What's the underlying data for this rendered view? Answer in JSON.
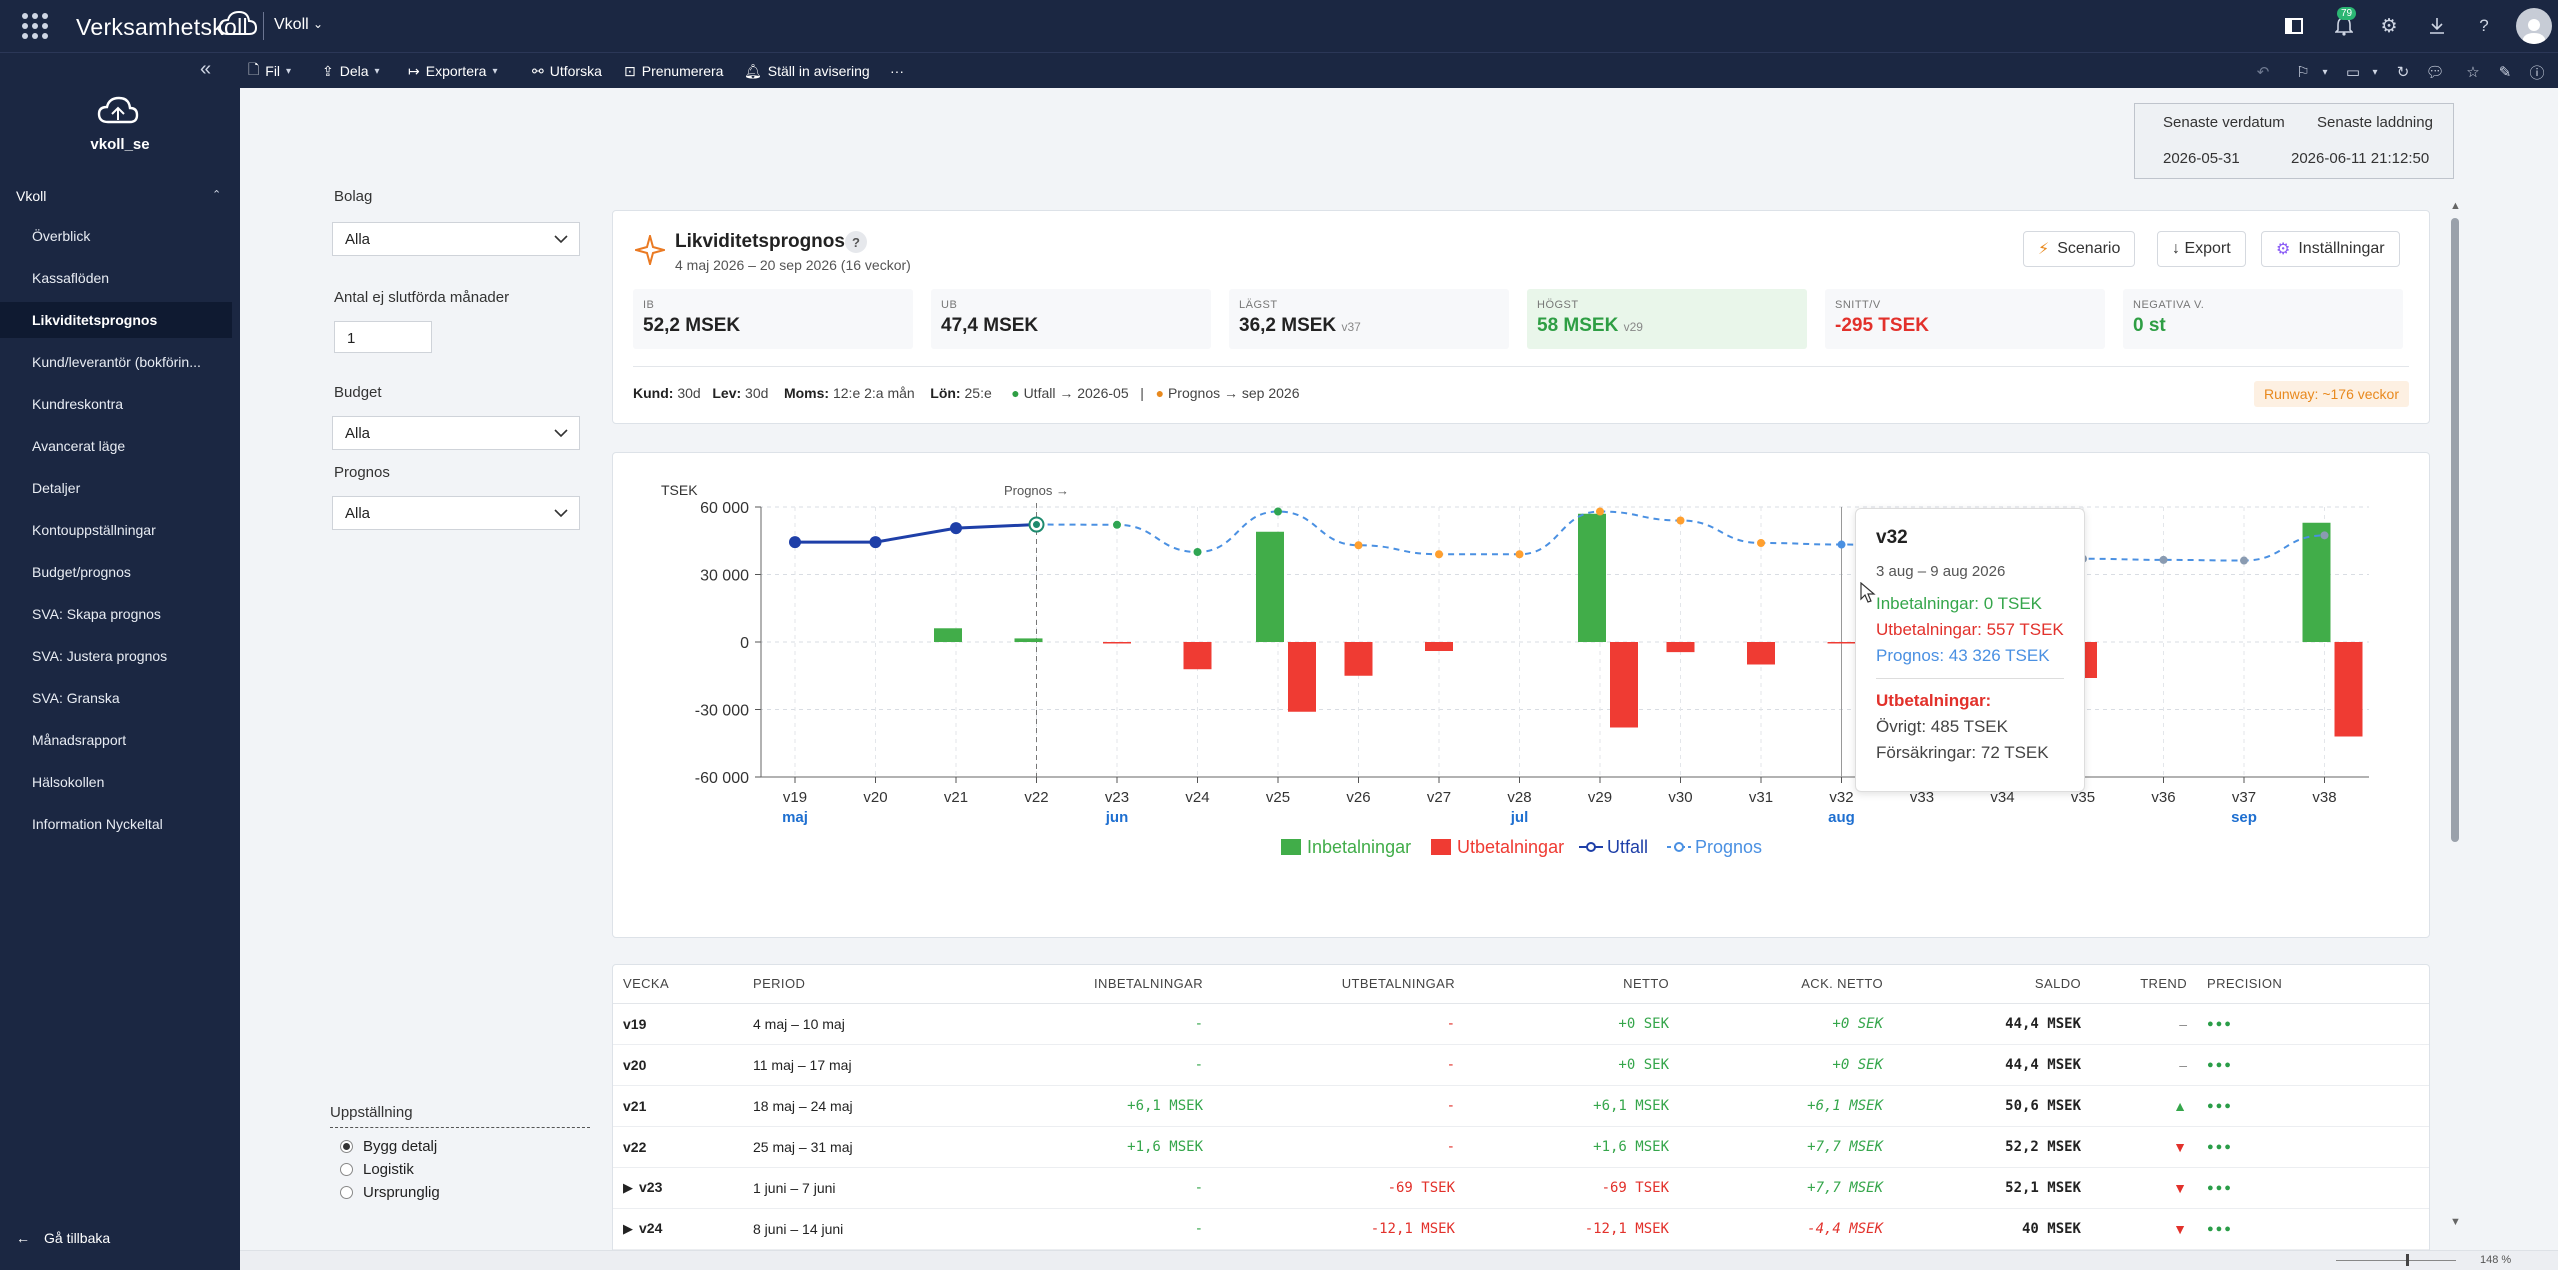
{
  "app": {
    "brand": "Verksamhetskoll",
    "workspace": "Vkoll",
    "notif_count": "79"
  },
  "toolbar": {
    "file": "Fil",
    "share": "Dela",
    "export": "Exportera",
    "explore": "Utforska",
    "subscribe": "Prenumerera",
    "alert": "Ställ in avisering",
    "more": "···"
  },
  "sidebar": {
    "org": "vkoll_se",
    "group": "Vkoll",
    "items": [
      {
        "label": "Överblick"
      },
      {
        "label": "Kassaflöden"
      },
      {
        "label": "Likviditetsprognos"
      },
      {
        "label": "Kund/leverantör (bokförin..."
      },
      {
        "label": "Kundreskontra"
      },
      {
        "label": "Avancerat läge"
      },
      {
        "label": "Detaljer"
      },
      {
        "label": "Kontouppställningar"
      },
      {
        "label": "Budget/prognos"
      },
      {
        "label": "SVA: Skapa prognos"
      },
      {
        "label": "SVA: Justera prognos"
      },
      {
        "label": "SVA: Granska"
      },
      {
        "label": "Månadsrapport"
      },
      {
        "label": "Hälsokollen"
      },
      {
        "label": "Information Nyckeltal"
      }
    ],
    "back": "Gå tillbaka"
  },
  "datebox": {
    "h1": "Senaste verdatum",
    "h2": "Senaste laddning",
    "v1": "2026-05-31",
    "v2": "2026-06-11 21:12:50"
  },
  "filters": {
    "bolag_label": "Bolag",
    "bolag_value": "Alla",
    "months_label": "Antal ej slutförda månader",
    "months_value": "1",
    "budget_label": "Budget",
    "budget_value": "Alla",
    "prognos_label": "Prognos",
    "prognos_value": "Alla"
  },
  "layout_options": {
    "title": "Uppställning",
    "opt1": "Bygg detalj",
    "opt2": "Logistik",
    "opt3": "Ursprunglig"
  },
  "summary": {
    "title": "Likviditetsprognos",
    "help": "?",
    "subtitle": "4 maj 2026 – 20 sep 2026 (16 veckor)",
    "btn_scenario": "Scenario",
    "btn_export": "↓ Export",
    "btn_settings": "Inställningar",
    "kpis": {
      "ib_label": "IB",
      "ib_value": "52,2 MSEK",
      "ub_label": "UB",
      "ub_value": "47,4 MSEK",
      "low_label": "LÄGST",
      "low_value": "36,2 MSEK",
      "low_week": "v37",
      "high_label": "HÖGST",
      "high_value": "58 MSEK",
      "high_week": "v29",
      "avg_label": "SNITT/V",
      "avg_value": "-295 TSEK",
      "neg_label": "NEGATIVA V.",
      "neg_value": "0 st"
    },
    "assump": {
      "kund_l": "Kund:",
      "kund_v": "30d",
      "lev_l": "Lev:",
      "lev_v": "30d",
      "moms_l": "Moms:",
      "moms_v": "12:e 2:a mån",
      "lon_l": "Lön:",
      "lon_v": "25:e",
      "utfall": "Utfall → 2026-05",
      "sep": "|",
      "prognos": "Prognos → sep 2026"
    },
    "runway": "Runway: ~176 veckor"
  },
  "chart_data": {
    "type": "bar",
    "ylabel": "TSEK",
    "ylim": [
      -60000,
      60000
    ],
    "yticks": [
      "60 000",
      "30 000",
      "0",
      "-30 000",
      "-60 000"
    ],
    "categories": [
      "v19",
      "v20",
      "v21",
      "v22",
      "v23",
      "v24",
      "v25",
      "v26",
      "v27",
      "v28",
      "v29",
      "v30",
      "v31",
      "v32",
      "v33",
      "v34",
      "v35",
      "v36",
      "v37",
      "v38"
    ],
    "months": [
      {
        "label": "maj",
        "at": "v19"
      },
      {
        "label": "jun",
        "at": "v23"
      },
      {
        "label": "jul",
        "at": "v28"
      },
      {
        "label": "aug",
        "at": "v32"
      },
      {
        "label": "sep",
        "at": "v37"
      }
    ],
    "forecast_marker": "Prognos →",
    "series": [
      {
        "name": "Inbetalningar",
        "values": [
          0,
          0,
          6100,
          1600,
          0,
          0,
          49000,
          0,
          0,
          0,
          57000,
          0,
          0,
          0,
          0,
          0,
          0,
          0,
          0,
          53000
        ]
      },
      {
        "name": "Utbetalningar",
        "values": [
          0,
          0,
          0,
          0,
          -69,
          -12100,
          -31000,
          -15000,
          -4000,
          0,
          -38000,
          -4500,
          -10000,
          -557,
          0,
          0,
          -16000,
          0,
          0,
          -42000
        ]
      },
      {
        "name": "Utfall",
        "values": [
          44400,
          44400,
          50600,
          52200,
          null,
          null,
          null,
          null,
          null,
          null,
          null,
          null,
          null,
          null,
          null,
          null,
          null,
          null,
          null,
          null
        ]
      },
      {
        "name": "Prognos",
        "values": [
          null,
          null,
          null,
          52200,
          52100,
          40000,
          58000,
          43000,
          39000,
          39000,
          58000,
          54000,
          44000,
          43326,
          null,
          null,
          37000,
          36500,
          36200,
          47400
        ]
      }
    ],
    "legend": [
      "Inbetalningar",
      "Utbetalningar",
      "Utfall",
      "Prognos"
    ],
    "legend_position": "bottom",
    "colors": {
      "in": "#41ad49",
      "out": "#ef3b33",
      "utfall": "#1e3fa8",
      "prognos": "#4a90e2"
    }
  },
  "tooltip": {
    "title": "v32",
    "range": "3 aug – 9 aug 2026",
    "in": "Inbetalningar: 0 TSEK",
    "out": "Utbetalningar: 557 TSEK",
    "prog": "Prognos: 43 326 TSEK",
    "sec": "Utbetalningar:",
    "d1": "Övrigt: 485 TSEK",
    "d2": "Försäkringar: 72 TSEK"
  },
  "table": {
    "headers": [
      "VECKA",
      "PERIOD",
      "INBETALNINGAR",
      "UTBETALNINGAR",
      "NETTO",
      "ACK. NETTO",
      "SALDO",
      "TREND",
      "PRECISION"
    ],
    "rows": [
      {
        "week": "v19",
        "period": "4 maj – 10 maj",
        "in": "-",
        "out": "-",
        "net": "+0 SEK",
        "acc": "+0 SEK",
        "saldo": "44,4 MSEK",
        "trend": "–",
        "prec": "●●●",
        "exp": ""
      },
      {
        "week": "v20",
        "period": "11 maj – 17 maj",
        "in": "-",
        "out": "-",
        "net": "+0 SEK",
        "acc": "+0 SEK",
        "saldo": "44,4 MSEK",
        "trend": "–",
        "prec": "●●●",
        "exp": ""
      },
      {
        "week": "v21",
        "period": "18 maj – 24 maj",
        "in": "+6,1 MSEK",
        "out": "-",
        "net": "+6,1 MSEK",
        "acc": "+6,1 MSEK",
        "saldo": "50,6 MSEK",
        "trend": "▲",
        "prec": "●●●",
        "exp": ""
      },
      {
        "week": "v22",
        "period": "25 maj – 31 maj",
        "in": "+1,6 MSEK",
        "out": "-",
        "net": "+1,6 MSEK",
        "acc": "+7,7 MSEK",
        "saldo": "52,2 MSEK",
        "trend": "▼",
        "prec": "●●●",
        "exp": ""
      },
      {
        "week": "v23",
        "period": "1 juni – 7 juni",
        "in": "-",
        "out": "-69 TSEK",
        "net": "-69 TSEK",
        "acc": "+7,7 MSEK",
        "saldo": "52,1 MSEK",
        "trend": "▼",
        "prec": "●●●",
        "exp": "▶"
      },
      {
        "week": "v24",
        "period": "8 juni – 14 juni",
        "in": "-",
        "out": "-12,1 MSEK",
        "net": "-12,1 MSEK",
        "acc": "-4,4 MSEK",
        "saldo": "40 MSEK",
        "trend": "▼",
        "prec": "●●●",
        "exp": "▶"
      }
    ]
  },
  "status": {
    "zoom": "148 %"
  }
}
